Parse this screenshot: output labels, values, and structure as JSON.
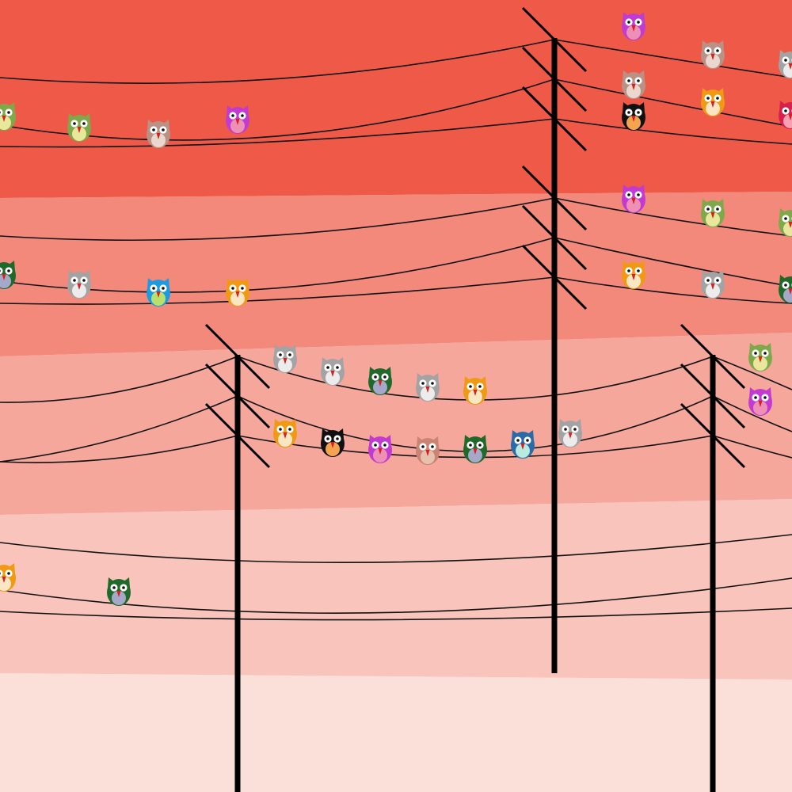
{
  "scene": {
    "subject": "owls-on-power-lines",
    "colors": {
      "band_1": "#ef5a48",
      "band_2": "#f2897b",
      "band_3": "#f5a79c",
      "band_4": "#f8c4bc",
      "band_5": "#fbe0da",
      "pole": "#000000",
      "wire": "#111111",
      "eye_white": "#ffffff",
      "pupil": "#111111",
      "beak": "#d61f1f"
    },
    "owls": [
      {
        "name": "owl-red-1",
        "body": "#c23bd0",
        "belly": "#ee8fb6"
      },
      {
        "name": "owl-red-2",
        "body": "#b99286",
        "belly": "#ead8cf"
      },
      {
        "name": "owl-red-3",
        "body": "#a3a3a3",
        "belly": "#ececec"
      },
      {
        "name": "owl-red-4",
        "body": "#b99286",
        "belly": "#ead8cf"
      },
      {
        "name": "owl-red-5",
        "body": "#f09a14",
        "belly": "#fbe6c3"
      },
      {
        "name": "owl-red-6",
        "body": "#111111",
        "belly": "#f4a44e"
      },
      {
        "name": "owl-red-7",
        "body": "#d8204e",
        "belly": "#f7a0b3"
      },
      {
        "name": "owl-red-8",
        "body": "#7fa84a",
        "belly": "#e8e79c"
      },
      {
        "name": "owl-red-9",
        "body": "#7fa84a",
        "belly": "#e8e79c"
      },
      {
        "name": "owl-red-10",
        "body": "#b99286",
        "belly": "#ead8cf"
      },
      {
        "name": "owl-red-11",
        "body": "#c23bd0",
        "belly": "#ee8fb6"
      },
      {
        "name": "owl-mid-1",
        "body": "#c23bd0",
        "belly": "#ee8fb6"
      },
      {
        "name": "owl-mid-2",
        "body": "#7fa84a",
        "belly": "#e8e79c"
      },
      {
        "name": "owl-mid-3",
        "body": "#7fa84a",
        "belly": "#e8e79c"
      },
      {
        "name": "owl-mid-4",
        "body": "#f09a14",
        "belly": "#fbe6c3"
      },
      {
        "name": "owl-mid-5",
        "body": "#a3a3a3",
        "belly": "#ececec"
      },
      {
        "name": "owl-mid-6",
        "body": "#1f6a2a",
        "belly": "#a6a8c9"
      },
      {
        "name": "owl-mid-7",
        "body": "#a3a3a3",
        "belly": "#ececec"
      },
      {
        "name": "owl-mid-8",
        "body": "#1f6a2a",
        "belly": "#a6a8c9"
      },
      {
        "name": "owl-mid-9",
        "body": "#1c9be0",
        "belly": "#b8e06a"
      },
      {
        "name": "owl-mid-10",
        "body": "#f09a14",
        "belly": "#fbe6c3"
      },
      {
        "name": "owl-upper-1",
        "body": "#a3a3a3",
        "belly": "#ececec"
      },
      {
        "name": "owl-upper-2",
        "body": "#a3a3a3",
        "belly": "#ececec"
      },
      {
        "name": "owl-upper-3",
        "body": "#1f6a2a",
        "belly": "#a6a8c9"
      },
      {
        "name": "owl-upper-4",
        "body": "#a3a3a3",
        "belly": "#ececec"
      },
      {
        "name": "owl-upper-5",
        "body": "#f09a14",
        "belly": "#fbe6c3"
      },
      {
        "name": "owl-lower-1",
        "body": "#f09a14",
        "belly": "#fbe6c3"
      },
      {
        "name": "owl-lower-2",
        "body": "#111111",
        "belly": "#f4a44e"
      },
      {
        "name": "owl-lower-3",
        "body": "#c23bd0",
        "belly": "#ee8fb6"
      },
      {
        "name": "owl-lower-4",
        "body": "#c98474",
        "belly": "#e8c1ae"
      },
      {
        "name": "owl-lower-5",
        "body": "#1f6a2a",
        "belly": "#a6a8c9"
      },
      {
        "name": "owl-lower-6",
        "body": "#2a6aa6",
        "belly": "#b8eae0"
      },
      {
        "name": "owl-lower-7",
        "body": "#a3a3a3",
        "belly": "#ececec"
      },
      {
        "name": "owl-right-1",
        "body": "#7fa84a",
        "belly": "#e8e79c"
      },
      {
        "name": "owl-right-2",
        "body": "#c23bd0",
        "belly": "#ee8fb6"
      },
      {
        "name": "owl-bottom-1",
        "body": "#f09a14",
        "belly": "#fbe6c3"
      },
      {
        "name": "owl-bottom-2",
        "body": "#1f6a2a",
        "belly": "#a6a8c9"
      }
    ]
  }
}
